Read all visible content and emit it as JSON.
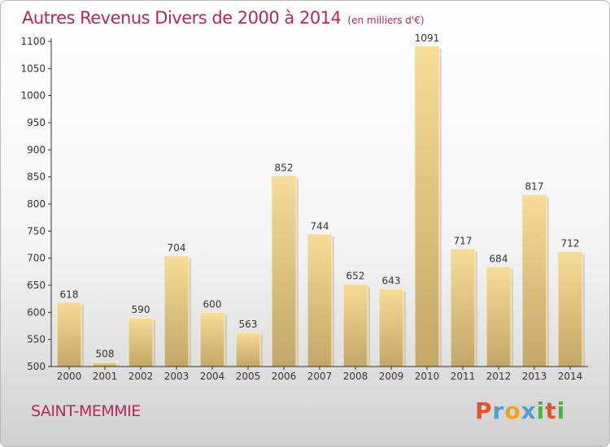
{
  "header": {
    "title": "Autres Revenus Divers de 2000 à 2014",
    "subtitle": "(en milliers d'€)"
  },
  "place": {
    "name": "SAINT-MEMMIE"
  },
  "logo": {
    "letters": [
      "P",
      "r",
      "o",
      "x",
      "i",
      "t",
      "i"
    ],
    "colors": [
      "#e0532b",
      "#4d9fd6",
      "#f0a21a",
      "#4d9fd6",
      "#4db33d",
      "#e0532b",
      "#4db33d"
    ]
  },
  "colors": {
    "accent": "#b5265e",
    "bar_light": "#f7dc97",
    "bar_dark": "#c2a766",
    "axis": "#333333"
  },
  "chart_data": {
    "type": "bar",
    "title": "Autres Revenus Divers de 2000 à 2014",
    "subtitle": "(en milliers d'€)",
    "xlabel": "",
    "ylabel": "",
    "categories": [
      "2000",
      "2001",
      "2002",
      "2003",
      "2004",
      "2005",
      "2006",
      "2007",
      "2008",
      "2009",
      "2010",
      "2011",
      "2012",
      "2013",
      "2014"
    ],
    "values": [
      618,
      508,
      590,
      704,
      600,
      563,
      852,
      744,
      652,
      643,
      1091,
      717,
      684,
      817,
      712
    ],
    "ylim": [
      500,
      1100
    ],
    "yticks": [
      500,
      550,
      600,
      650,
      700,
      750,
      800,
      850,
      900,
      950,
      1000,
      1050,
      1100
    ],
    "grid": false,
    "legend": "none"
  }
}
